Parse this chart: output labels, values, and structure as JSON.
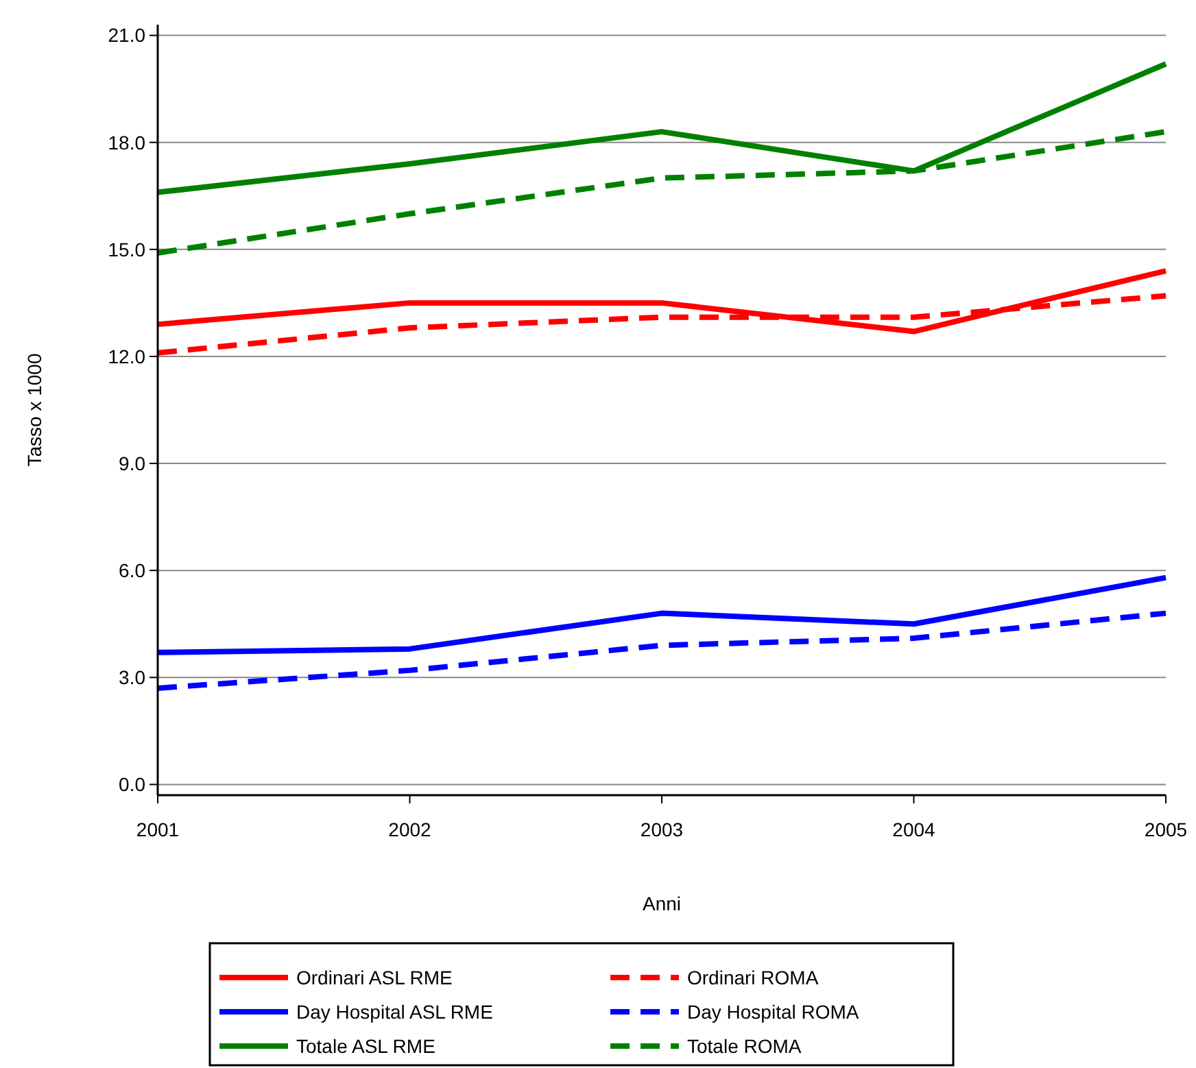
{
  "chart_data": {
    "type": "line",
    "xlabel": "Anni",
    "ylabel": "Tasso x 1000",
    "x": [
      2001,
      2002,
      2003,
      2004,
      2005
    ],
    "xlim": [
      2001,
      2005
    ],
    "xticks": [
      2001,
      2002,
      2003,
      2004,
      2005
    ],
    "ylim": [
      -0.3,
      21.3
    ],
    "yticks": [
      {
        "value": 0,
        "label": "0.0"
      },
      {
        "value": 3,
        "label": "3.0"
      },
      {
        "value": 6,
        "label": "6.0"
      },
      {
        "value": 9,
        "label": "9.0"
      },
      {
        "value": 12,
        "label": "12.0"
      },
      {
        "value": 15,
        "label": "15.0"
      },
      {
        "value": 18,
        "label": "18.0"
      },
      {
        "value": 21,
        "label": "21.0"
      }
    ],
    "grid": "y",
    "legend": "bottom",
    "marker": "none",
    "series": [
      {
        "name": "Ordinari ASL RME",
        "color": "#ff0000",
        "line_style": "solid",
        "values": [
          12.9,
          13.5,
          13.5,
          12.7,
          14.4
        ]
      },
      {
        "name": "Ordinari ROMA",
        "color": "#ff0000",
        "line_style": "dashed",
        "values": [
          12.1,
          12.8,
          13.1,
          13.1,
          13.7
        ]
      },
      {
        "name": "Day Hospital ASL RME",
        "color": "#0000ff",
        "line_style": "solid",
        "values": [
          3.7,
          3.8,
          4.8,
          4.5,
          5.8
        ]
      },
      {
        "name": "Day Hospital ROMA",
        "color": "#0000ff",
        "line_style": "dashed",
        "values": [
          2.7,
          3.2,
          3.9,
          4.1,
          4.8
        ]
      },
      {
        "name": "Totale ASL RME",
        "color": "#008000",
        "line_style": "solid",
        "values": [
          16.6,
          17.4,
          18.3,
          17.2,
          20.2
        ]
      },
      {
        "name": "Totale ROMA",
        "color": "#008000",
        "line_style": "dashed",
        "values": [
          14.9,
          16.0,
          17.0,
          17.2,
          18.3
        ]
      }
    ]
  }
}
